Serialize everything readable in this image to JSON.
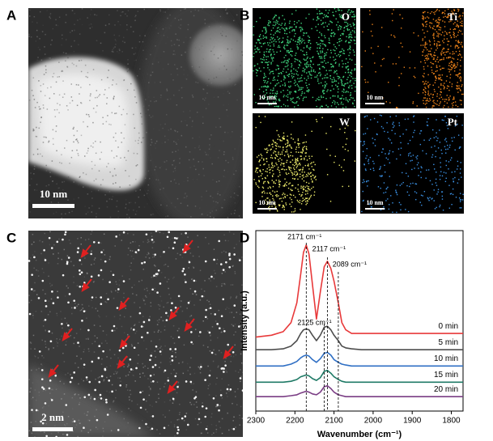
{
  "figure": {
    "panel_a": {
      "label": "A",
      "scale_bar": "10 nm"
    },
    "panel_b": {
      "label": "B",
      "maps": [
        {
          "element": "O",
          "scale_bar": "10 nm",
          "color": "#3fd27c"
        },
        {
          "element": "Ti",
          "scale_bar": "10 nm",
          "color": "#e8801a"
        },
        {
          "element": "W",
          "scale_bar": "10 nm",
          "color": "#ecea6a"
        },
        {
          "element": "Pt",
          "scale_bar": "10 nm",
          "color": "#3b92e6"
        }
      ]
    },
    "panel_c": {
      "label": "C",
      "scale_bar": "2 nm"
    }
  },
  "chart_data": {
    "type": "line",
    "panel_label": "D",
    "x_label": "Wavenumber (cm⁻¹)",
    "y_label": "Intensity (a.u.)",
    "x": [
      2300,
      2260,
      2230,
      2210,
      2195,
      2185,
      2178,
      2171,
      2164,
      2155,
      2145,
      2135,
      2125,
      2117,
      2108,
      2100,
      2089,
      2080,
      2070,
      2055,
      2030,
      2000,
      1950,
      1900,
      1850,
      1800,
      1770
    ],
    "xlim": [
      2300,
      1770
    ],
    "xticks": [
      2300,
      2200,
      2100,
      2000,
      1900,
      1800
    ],
    "ylim": [
      0,
      10
    ],
    "series": [
      {
        "name": "0 min",
        "color": "#e8393a",
        "values": [
          4.1,
          4.2,
          4.4,
          4.9,
          6.0,
          7.6,
          8.8,
          9.2,
          8.7,
          7.0,
          5.1,
          6.6,
          8.0,
          8.3,
          7.9,
          7.2,
          6.0,
          4.9,
          4.5,
          4.3,
          4.3,
          4.3,
          4.3,
          4.3,
          4.3,
          4.3,
          4.3
        ]
      },
      {
        "name": "5 min",
        "color": "#4d4d4d",
        "values": [
          3.4,
          3.4,
          3.45,
          3.6,
          3.9,
          4.3,
          4.5,
          4.55,
          4.5,
          4.2,
          3.9,
          4.2,
          4.65,
          4.7,
          4.5,
          4.2,
          3.9,
          3.6,
          3.5,
          3.45,
          3.4,
          3.4,
          3.4,
          3.4,
          3.4,
          3.4,
          3.4
        ]
      },
      {
        "name": "10 min",
        "color": "#2f6fc4",
        "values": [
          2.5,
          2.5,
          2.5,
          2.6,
          2.75,
          2.95,
          3.05,
          3.1,
          3.05,
          2.85,
          2.7,
          2.9,
          3.2,
          3.25,
          3.1,
          2.85,
          2.7,
          2.6,
          2.55,
          2.5,
          2.5,
          2.5,
          2.5,
          2.5,
          2.5,
          2.5,
          2.5
        ]
      },
      {
        "name": "15 min",
        "color": "#1f7a66",
        "values": [
          1.6,
          1.6,
          1.6,
          1.65,
          1.75,
          1.9,
          1.95,
          2.0,
          1.95,
          1.8,
          1.7,
          1.85,
          2.2,
          2.25,
          2.1,
          1.9,
          1.75,
          1.65,
          1.6,
          1.6,
          1.6,
          1.6,
          1.6,
          1.6,
          1.6,
          1.6,
          1.6
        ]
      },
      {
        "name": "20 min",
        "color": "#7a3d84",
        "values": [
          0.8,
          0.8,
          0.8,
          0.85,
          0.9,
          1.0,
          1.05,
          1.1,
          1.05,
          0.95,
          0.9,
          1.05,
          1.35,
          1.4,
          1.25,
          1.05,
          0.9,
          0.85,
          0.8,
          0.8,
          0.8,
          0.8,
          0.8,
          0.8,
          0.8,
          0.8,
          0.8
        ]
      }
    ],
    "annotations": [
      {
        "text": "2171 cm⁻¹",
        "x": 2171
      },
      {
        "text": "2117 cm⁻¹",
        "x": 2117
      },
      {
        "text": "2089 cm⁻¹",
        "x": 2089
      },
      {
        "text": "2125 cm⁻¹",
        "x": 2125
      }
    ]
  }
}
